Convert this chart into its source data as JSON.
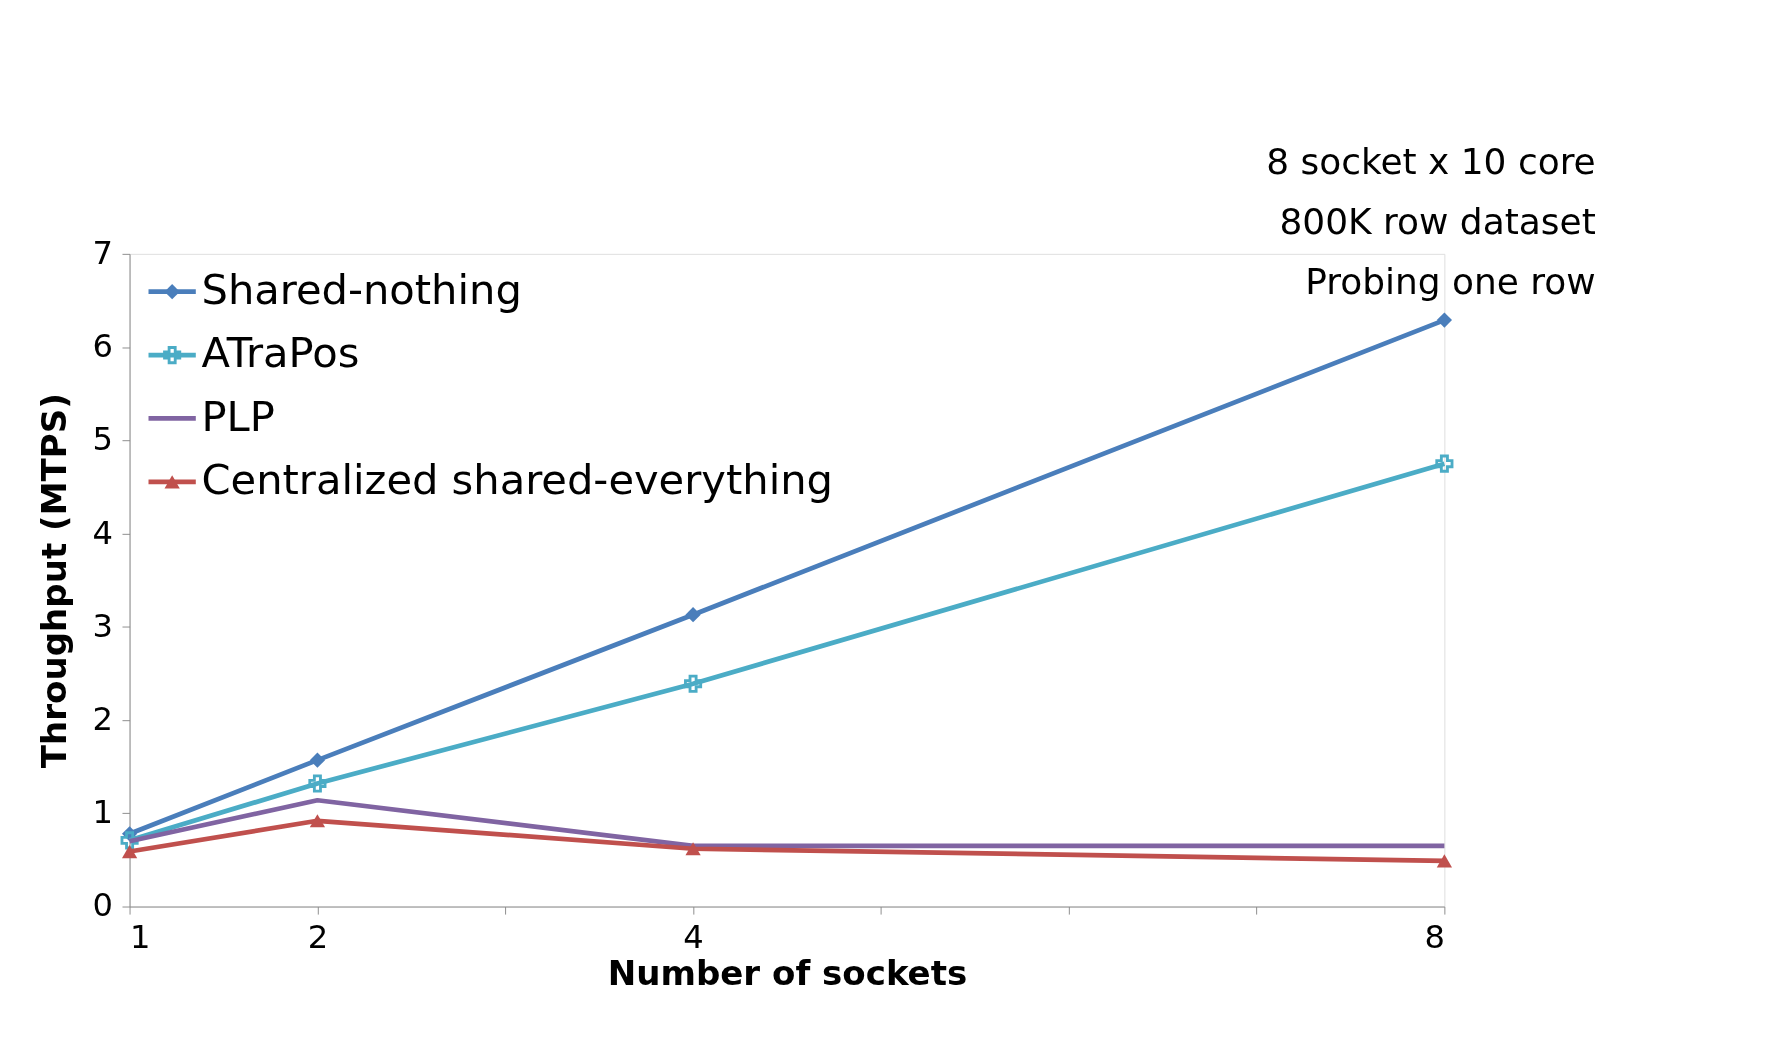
{
  "chart_data": {
    "type": "line",
    "xlabel": "Number of sockets",
    "ylabel": "Throughput (MTPS)",
    "x": [
      1,
      2,
      4,
      8
    ],
    "series": [
      {
        "name": "Shared-nothing",
        "color": "#4a7ebb",
        "marker": "diamond",
        "values": [
          0.78,
          1.57,
          3.13,
          6.29
        ]
      },
      {
        "name": "ATraPos",
        "color": "#4bacc6",
        "marker": "cross",
        "values": [
          0.71,
          1.32,
          2.39,
          4.75
        ]
      },
      {
        "name": "PLP",
        "color": "#8064a2",
        "marker": "none",
        "values": [
          0.7,
          1.14,
          0.65,
          0.65
        ]
      },
      {
        "name": "Centralized shared-everything",
        "color": "#c0504d",
        "marker": "triangle",
        "values": [
          0.59,
          0.92,
          0.62,
          0.49
        ]
      }
    ],
    "xlim": [
      1,
      8
    ],
    "xticks": [
      1,
      2,
      {
        "value": 3,
        "label": null
      },
      4,
      {
        "value": 5,
        "label": null
      },
      {
        "value": 6,
        "label": null
      },
      {
        "value": 7,
        "label": null
      },
      8
    ],
    "ylim": [
      0,
      7
    ],
    "yticks": [
      0,
      1,
      2,
      3,
      4,
      5,
      6,
      7
    ],
    "grid": false,
    "legend": "top left",
    "line_style": "solid",
    "annotations": [
      "8 socket x 10 core",
      "800K row dataset",
      "Probing one row"
    ]
  }
}
